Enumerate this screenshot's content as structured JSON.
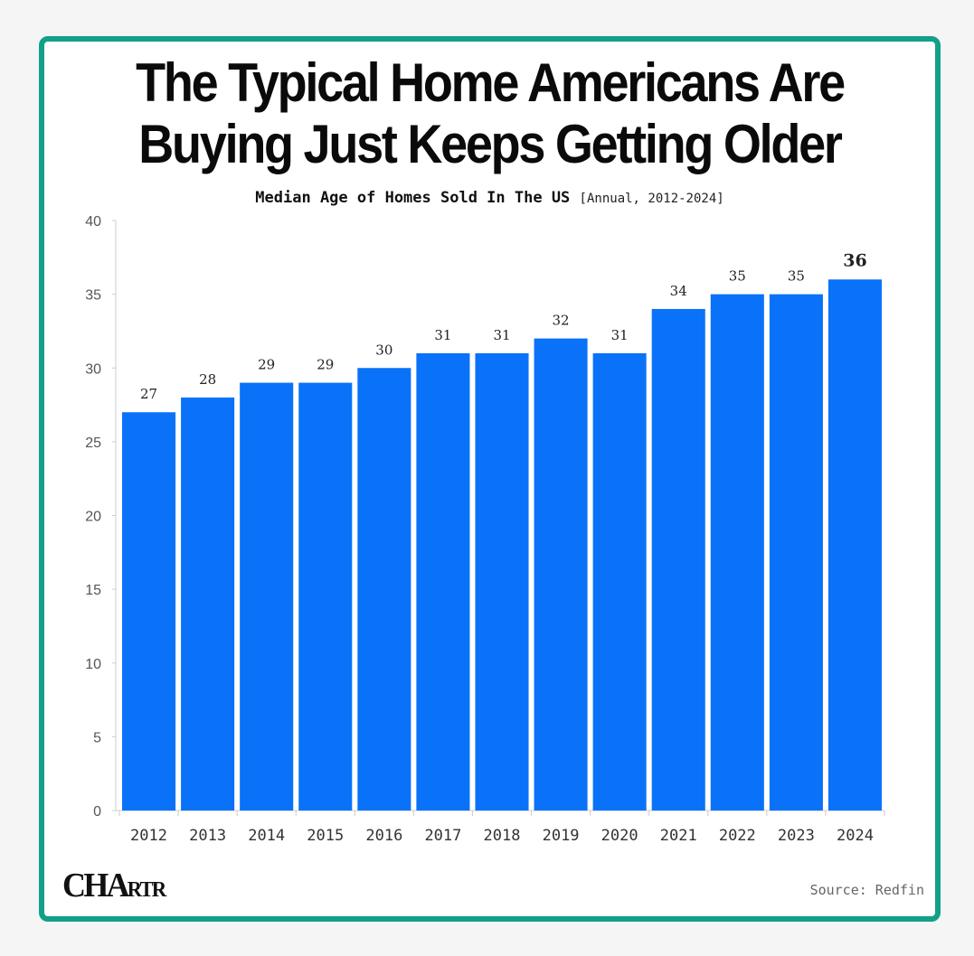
{
  "chart_data": {
    "type": "bar",
    "title_lines": [
      "The Typical Home Americans Are",
      "Buying Just Keeps Getting Older"
    ],
    "subtitle": "Median Age of Homes Sold In The US",
    "subtitle_note": "[Annual, 2012-2024]",
    "categories": [
      "2012",
      "2013",
      "2014",
      "2015",
      "2016",
      "2017",
      "2018",
      "2019",
      "2020",
      "2021",
      "2022",
      "2023",
      "2024"
    ],
    "values": [
      27,
      28,
      29,
      29,
      30,
      31,
      31,
      32,
      31,
      34,
      35,
      35,
      36
    ],
    "ylim": [
      0,
      40
    ],
    "yticks": [
      0,
      5,
      10,
      15,
      20,
      25,
      30,
      35,
      40
    ],
    "xlabel": "",
    "ylabel": "",
    "grid": false,
    "bar_color": "#0a72f9",
    "highlight_last_label": true
  },
  "footer": {
    "logo_main": "CHA",
    "logo_small": "RTR",
    "source": "Source: Redfin"
  },
  "colors": {
    "frame": "#12a089",
    "bar": "#0a72f9"
  }
}
